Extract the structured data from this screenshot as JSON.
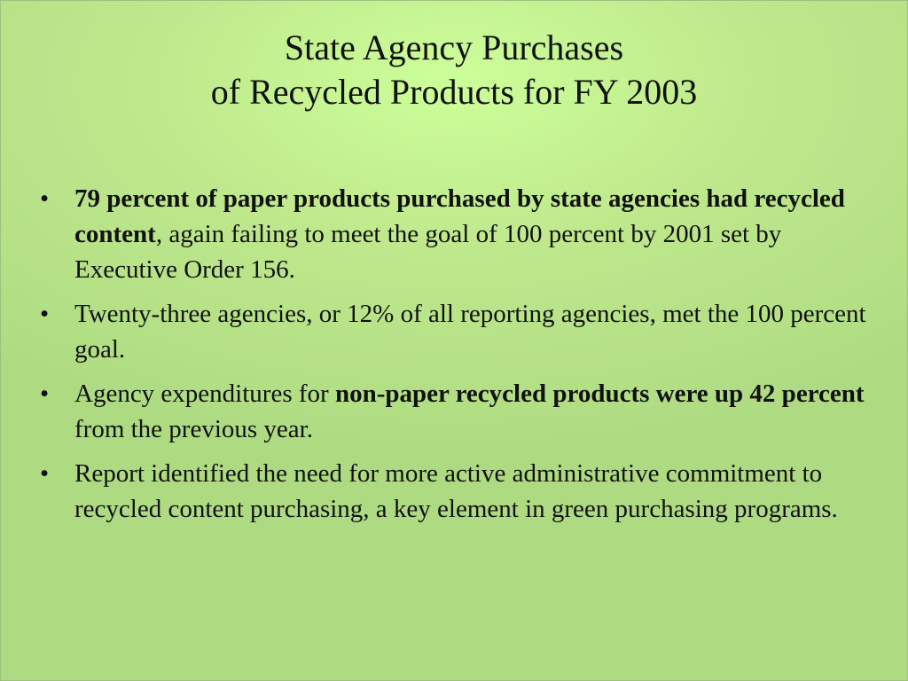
{
  "slide": {
    "title_line1": "State Agency Purchases",
    "title_line2": "of Recycled Products for FY 2003",
    "bullet_symbol": "•",
    "bullets": [
      {
        "bold": "79 percent of paper products purchased by state agencies had recycled content",
        "rest": ", again failing to meet the goal of 100 percent by 2001 set by Executive Order 156."
      },
      {
        "text": "Twenty-three agencies, or 12% of all reporting agencies, met the 100 percent goal."
      },
      {
        "pre": "Agency expenditures for ",
        "bold": "non-paper recycled products were up 42 percent",
        "rest": " from the previous year."
      },
      {
        "text": "Report identified the need for more active administrative commitment to recycled content purchasing, a key element in green purchasing programs."
      }
    ]
  },
  "colors": {
    "background_light": "#ccff99",
    "background_dark": "#aedb82",
    "text": "#111111"
  }
}
